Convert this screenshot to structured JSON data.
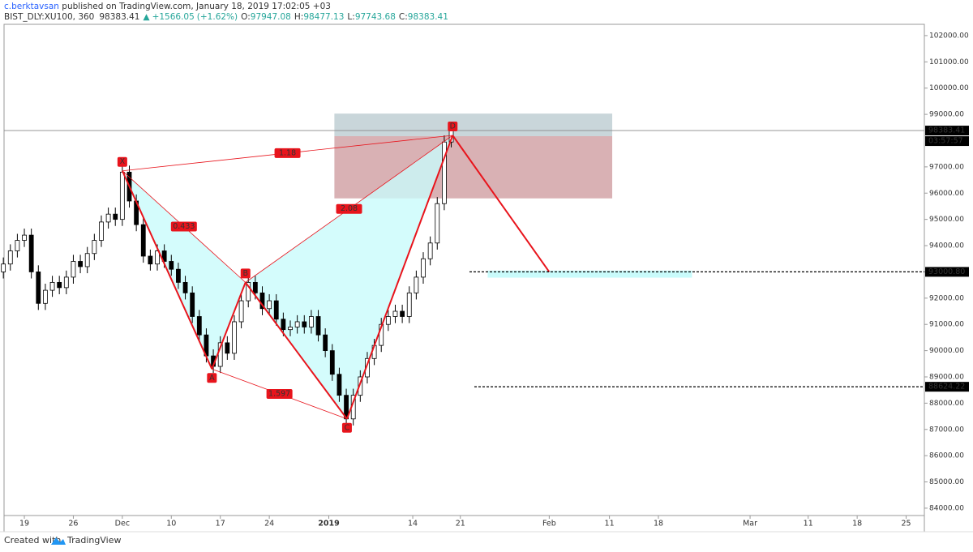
{
  "chart_data": {
    "type": "candlestick",
    "author": "c.berktavsan",
    "published": " published on TradingView.com, January 18, 2019 17:02:05 +03",
    "symbol": "BIST_DLY:XU100, 360",
    "direction_symbol": "▲",
    "change": "+1566.05",
    "change_pct": "(+1.62%)",
    "ohlc_labels": [
      "O:",
      "H:",
      "L:",
      "C:"
    ],
    "countdown": "03:57:57",
    "footer": "Created with",
    "brand": "TradingView",
    "up_color": "#ffffff",
    "down_color": "#000000",
    "x": [
      -3,
      -2,
      -1,
      0,
      1,
      2,
      3,
      4,
      5,
      6,
      7,
      8,
      9,
      10,
      11,
      12,
      13,
      14,
      15,
      16,
      17,
      18,
      19,
      20,
      21,
      22,
      23,
      24,
      25,
      26,
      27,
      28,
      29,
      30,
      31,
      32,
      33,
      34,
      35,
      36,
      37,
      38,
      39,
      40,
      41,
      42,
      43,
      44,
      45,
      46,
      47,
      48,
      49,
      50,
      51,
      52,
      53,
      54,
      55,
      56,
      57,
      58,
      59,
      60,
      61
    ],
    "open": [
      93000,
      93300,
      93800,
      94200,
      94400,
      93000,
      91800,
      92300,
      92600,
      92400,
      92800,
      93400,
      93200,
      93700,
      94200,
      94900,
      95200,
      95000,
      96800,
      95700,
      94800,
      93600,
      93300,
      93800,
      93400,
      93100,
      92600,
      92200,
      91300,
      90600,
      89800,
      89400,
      90300,
      89900,
      91100,
      91900,
      92600,
      92200,
      91600,
      91900,
      91200,
      90800,
      90900,
      91100,
      90900,
      91300,
      90600,
      90000,
      89100,
      88300,
      87400,
      88300,
      89000,
      89700,
      90200,
      91000,
      91300,
      91500,
      91300,
      92200,
      92800,
      93500,
      94100,
      95600,
      97947.08
    ],
    "high": [
      93550,
      94050,
      94450,
      94650,
      94650,
      93250,
      92550,
      92850,
      92850,
      93050,
      93650,
      93650,
      93950,
      94450,
      95150,
      95450,
      95450,
      97050,
      97050,
      95950,
      95050,
      93850,
      94050,
      94050,
      93650,
      93350,
      92850,
      92450,
      91550,
      90850,
      90050,
      90550,
      90550,
      91350,
      92150,
      92850,
      92850,
      92450,
      92150,
      92150,
      91450,
      91150,
      91350,
      91350,
      91550,
      91550,
      90850,
      90250,
      89350,
      88550,
      88550,
      89250,
      89950,
      90450,
      91250,
      91550,
      91750,
      91750,
      92450,
      93050,
      93750,
      94350,
      95850,
      98200,
      98477.13
    ],
    "low": [
      92750,
      93050,
      93550,
      93950,
      92750,
      91550,
      91550,
      92050,
      92150,
      92150,
      92550,
      92950,
      92950,
      93450,
      93950,
      94650,
      94750,
      94750,
      95450,
      94550,
      93350,
      93050,
      93050,
      93150,
      92850,
      92350,
      91950,
      91050,
      90350,
      89550,
      89150,
      89150,
      89650,
      89650,
      90850,
      91650,
      91950,
      91350,
      91350,
      90950,
      90550,
      90550,
      90650,
      90650,
      90650,
      90350,
      89750,
      88850,
      88050,
      87150,
      87150,
      88050,
      88750,
      89450,
      89950,
      90750,
      91050,
      91050,
      91050,
      91950,
      92550,
      93250,
      93850,
      95350,
      97743.68
    ],
    "close": [
      93300,
      93800,
      94200,
      94400,
      93000,
      91800,
      92300,
      92600,
      92400,
      92800,
      93400,
      93200,
      93700,
      94200,
      94900,
      95200,
      95000,
      96800,
      95700,
      94800,
      93600,
      93300,
      93800,
      93400,
      93100,
      92600,
      92200,
      91300,
      90600,
      89800,
      89400,
      90300,
      89900,
      91100,
      91900,
      92600,
      92200,
      91600,
      91900,
      91200,
      90800,
      90900,
      91100,
      90900,
      91300,
      90600,
      90000,
      89100,
      88300,
      87400,
      88300,
      89000,
      89700,
      90200,
      91000,
      91300,
      91500,
      91300,
      92200,
      92800,
      93500,
      94100,
      95600,
      97947.08,
      98383.41
    ],
    "xlim": [
      -2.9,
      128.6
    ],
    "ylim": [
      83720,
      102430
    ],
    "xticks": [
      {
        "value": 0,
        "label": "19"
      },
      {
        "value": 7,
        "label": "26"
      },
      {
        "value": 14,
        "label": "Dec"
      },
      {
        "value": 21,
        "label": "10"
      },
      {
        "value": 28,
        "label": "17"
      },
      {
        "value": 35,
        "label": "24"
      },
      {
        "value": 43.5,
        "label": "2019"
      },
      {
        "value": 55.5,
        "label": "14"
      },
      {
        "value": 62.3,
        "label": "21"
      },
      {
        "value": 75,
        "label": "Feb"
      },
      {
        "value": 83.6,
        "label": "11"
      },
      {
        "value": 90.6,
        "label": "18"
      },
      {
        "value": 103.7,
        "label": "Mar"
      },
      {
        "value": 112,
        "label": "11"
      },
      {
        "value": 119,
        "label": "18"
      },
      {
        "value": 126,
        "label": "25"
      }
    ],
    "yticks": [
      {
        "value": 84000,
        "label": "84000.00"
      },
      {
        "value": 85000,
        "label": "85000.00"
      },
      {
        "value": 86000,
        "label": "86000.00"
      },
      {
        "value": 87000,
        "label": "87000.00"
      },
      {
        "value": 88000,
        "label": "88000.00"
      },
      {
        "value": 89000,
        "label": "89000.00"
      },
      {
        "value": 90000,
        "label": "90000.00"
      },
      {
        "value": 91000,
        "label": "91000.00"
      },
      {
        "value": 92000,
        "label": "92000.00"
      },
      {
        "value": 93000,
        "label": "93000.00"
      },
      {
        "value": 94000,
        "label": "94000.00"
      },
      {
        "value": 95000,
        "label": "95000.00"
      },
      {
        "value": 96000,
        "label": "96000.00"
      },
      {
        "value": 97000,
        "label": "97000.00"
      },
      {
        "value": 99000,
        "label": "99000.00"
      },
      {
        "value": 100000,
        "label": "100000.00"
      },
      {
        "value": 101000,
        "label": "101000.00"
      },
      {
        "value": 102000,
        "label": "102000.00"
      }
    ],
    "pattern": {
      "color": "#e8141c",
      "fill": "#c9fbfb",
      "points": [
        {
          "label": "X",
          "x": 14,
          "y": 96850
        },
        {
          "label": "A",
          "x": 26.8,
          "y": 89300
        },
        {
          "label": "B",
          "x": 31.6,
          "y": 92600
        },
        {
          "label": "C",
          "x": 46.1,
          "y": 87400
        },
        {
          "label": "D",
          "x": 61.2,
          "y": 98200
        }
      ],
      "ratios": [
        "1.18",
        "0.433",
        "2.08",
        "1.597"
      ],
      "projection": {
        "x": 75,
        "y": 93000
      }
    },
    "zones": [
      {
        "x": [
          44.3,
          84
        ],
        "y": [
          98170,
          99030
        ],
        "color": "#c9d6da"
      },
      {
        "x": [
          44.3,
          84
        ],
        "y": [
          95800,
          98170
        ],
        "color": "#d9b1b4"
      },
      {
        "x": [
          66.2,
          95.4
        ],
        "y": [
          92780,
          93050
        ],
        "color": "#c9fbfb"
      }
    ],
    "levels": [
      {
        "value": 93000.8,
        "label": "93000.80",
        "x": 63.6
      },
      {
        "value": 88624.22,
        "label": "88624.22",
        "x": 64.3
      }
    ]
  }
}
